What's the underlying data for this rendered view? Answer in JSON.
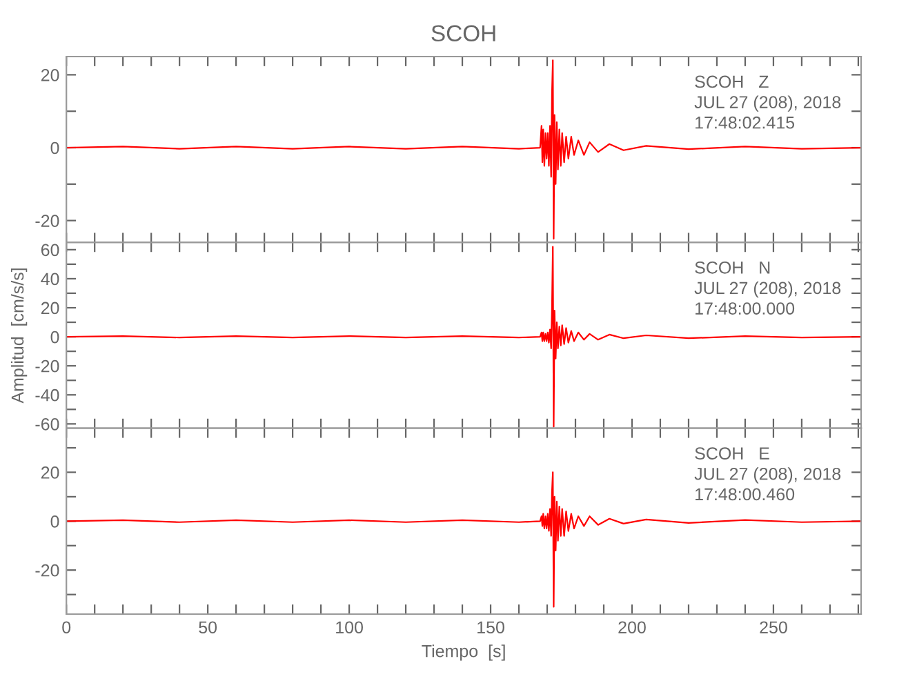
{
  "chart_data": [
    {
      "type": "line",
      "title": "SCOH",
      "annotations": [
        "SCOH   Z",
        "JUL 27 (208), 2018",
        "17:48:02.415"
      ],
      "tick_labels": "y",
      "grid": false,
      "xlim": [
        0,
        281
      ],
      "xticks": [
        0,
        {
          "value": 10,
          "label": null
        },
        {
          "value": 20,
          "label": null
        },
        {
          "value": 30,
          "label": null
        },
        {
          "value": 40,
          "label": null
        },
        50,
        {
          "value": 60,
          "label": null
        },
        {
          "value": 70,
          "label": null
        },
        {
          "value": 80,
          "label": null
        },
        {
          "value": 90,
          "label": null
        },
        100,
        {
          "value": 110,
          "label": null
        },
        {
          "value": 120,
          "label": null
        },
        {
          "value": 130,
          "label": null
        },
        {
          "value": 140,
          "label": null
        },
        150,
        {
          "value": 160,
          "label": null
        },
        {
          "value": 170,
          "label": null
        },
        {
          "value": 180,
          "label": null
        },
        {
          "value": 190,
          "label": null
        },
        200,
        {
          "value": 210,
          "label": null
        },
        {
          "value": 220,
          "label": null
        },
        {
          "value": 230,
          "label": null
        },
        {
          "value": 240,
          "label": null
        },
        250,
        {
          "value": 260,
          "label": null
        },
        {
          "value": 270,
          "label": null
        },
        {
          "value": 280,
          "label": null
        }
      ],
      "ylim": [
        -26,
        25
      ],
      "yticks": [
        -20,
        {
          "value": -10,
          "label": null
        },
        0,
        {
          "value": 10,
          "label": null
        },
        20
      ],
      "x": [
        0,
        20,
        40,
        60,
        80,
        100,
        120,
        140,
        160,
        167.5,
        168,
        168.3,
        168.6,
        169,
        169.4,
        169.8,
        170.2,
        170.6,
        171,
        171.4,
        171.7,
        172,
        172.3,
        172.6,
        173,
        173.4,
        173.8,
        174.3,
        174.8,
        175.3,
        176,
        176.7,
        177.5,
        178.5,
        179.5,
        181,
        183,
        185,
        188,
        192,
        197,
        205,
        220,
        240,
        260,
        281
      ],
      "series": [
        {
          "color": "#ff0000",
          "values": [
            0,
            0.3,
            -0.3,
            0.3,
            -0.3,
            0.3,
            -0.3,
            0.3,
            -0.3,
            0,
            6,
            -4,
            5,
            -5,
            4,
            -3,
            4,
            -5,
            6,
            -8,
            15,
            24,
            -25,
            9,
            -10,
            7,
            -6,
            5,
            -5,
            4,
            -4,
            3,
            -3,
            3,
            -2,
            2,
            -2,
            1.5,
            -1.2,
            1,
            -0.7,
            0.5,
            -0.4,
            0.3,
            -0.3,
            0
          ]
        }
      ]
    },
    {
      "type": "line",
      "ylabel": "Amplitud  [cm/s/s]",
      "annotations": [
        "SCOH   N",
        "JUL 27 (208), 2018",
        "17:48:00.000"
      ],
      "tick_labels": "y",
      "grid": false,
      "xlim": [
        0,
        281
      ],
      "xticks": [
        0,
        {
          "value": 10,
          "label": null
        },
        {
          "value": 20,
          "label": null
        },
        {
          "value": 30,
          "label": null
        },
        {
          "value": 40,
          "label": null
        },
        50,
        {
          "value": 60,
          "label": null
        },
        {
          "value": 70,
          "label": null
        },
        {
          "value": 80,
          "label": null
        },
        {
          "value": 90,
          "label": null
        },
        100,
        {
          "value": 110,
          "label": null
        },
        {
          "value": 120,
          "label": null
        },
        {
          "value": 130,
          "label": null
        },
        {
          "value": 140,
          "label": null
        },
        150,
        {
          "value": 160,
          "label": null
        },
        {
          "value": 170,
          "label": null
        },
        {
          "value": 180,
          "label": null
        },
        {
          "value": 190,
          "label": null
        },
        200,
        {
          "value": 210,
          "label": null
        },
        {
          "value": 220,
          "label": null
        },
        {
          "value": 230,
          "label": null
        },
        {
          "value": 240,
          "label": null
        },
        250,
        {
          "value": 260,
          "label": null
        },
        {
          "value": 270,
          "label": null
        },
        {
          "value": 280,
          "label": null
        }
      ],
      "ylim": [
        -63,
        65
      ],
      "yticks": [
        -60,
        {
          "value": -50,
          "label": null
        },
        -40,
        {
          "value": -30,
          "label": null
        },
        -20,
        {
          "value": -10,
          "label": null
        },
        0,
        {
          "value": 10,
          "label": null
        },
        20,
        {
          "value": 30,
          "label": null
        },
        40,
        {
          "value": 50,
          "label": null
        },
        60
      ],
      "x": [
        0,
        20,
        40,
        60,
        80,
        100,
        120,
        140,
        160,
        167.5,
        168,
        168.3,
        168.6,
        169,
        169.4,
        169.8,
        170.2,
        170.6,
        171,
        171.4,
        171.7,
        172,
        172.3,
        172.6,
        173,
        173.4,
        173.8,
        174.3,
        174.8,
        175.3,
        176,
        176.7,
        177.5,
        178.5,
        179.5,
        181,
        183,
        185,
        188,
        192,
        197,
        205,
        220,
        240,
        260,
        281
      ],
      "series": [
        {
          "color": "#ff0000",
          "values": [
            0,
            0.5,
            -0.5,
            0.5,
            -0.5,
            0.5,
            -0.5,
            0.5,
            -0.5,
            0,
            3,
            -3,
            3,
            -3,
            2,
            -3,
            3,
            -4,
            5,
            -8,
            20,
            62,
            -62,
            18,
            -15,
            10,
            -8,
            7,
            -6,
            8,
            -5,
            6,
            -4,
            4,
            -3,
            3,
            -2,
            2,
            -2,
            1.5,
            -1,
            1,
            -1,
            0.5,
            -0.5,
            0
          ]
        }
      ]
    },
    {
      "type": "line",
      "xlabel": "Tiempo  [s]",
      "annotations": [
        "SCOH   E",
        "JUL 27 (208), 2018",
        "17:48:00.460"
      ],
      "grid": false,
      "xlim": [
        0,
        281
      ],
      "xticks": [
        0,
        {
          "value": 10,
          "label": null
        },
        {
          "value": 20,
          "label": null
        },
        {
          "value": 30,
          "label": null
        },
        {
          "value": 40,
          "label": null
        },
        50,
        {
          "value": 60,
          "label": null
        },
        {
          "value": 70,
          "label": null
        },
        {
          "value": 80,
          "label": null
        },
        {
          "value": 90,
          "label": null
        },
        100,
        {
          "value": 110,
          "label": null
        },
        {
          "value": 120,
          "label": null
        },
        {
          "value": 130,
          "label": null
        },
        {
          "value": 140,
          "label": null
        },
        150,
        {
          "value": 160,
          "label": null
        },
        {
          "value": 170,
          "label": null
        },
        {
          "value": 180,
          "label": null
        },
        {
          "value": 190,
          "label": null
        },
        200,
        {
          "value": 210,
          "label": null
        },
        {
          "value": 220,
          "label": null
        },
        {
          "value": 230,
          "label": null
        },
        {
          "value": 240,
          "label": null
        },
        250,
        {
          "value": 260,
          "label": null
        },
        {
          "value": 270,
          "label": null
        },
        {
          "value": 280,
          "label": null
        }
      ],
      "ylim": [
        -38,
        38
      ],
      "yticks": [
        {
          "value": -30,
          "label": null
        },
        -20,
        {
          "value": -10,
          "label": null
        },
        0,
        {
          "value": 10,
          "label": null
        },
        20,
        {
          "value": 30,
          "label": null
        }
      ],
      "x": [
        0,
        20,
        40,
        60,
        80,
        100,
        120,
        140,
        160,
        167.5,
        168,
        168.3,
        168.6,
        169,
        169.4,
        169.8,
        170.2,
        170.6,
        171,
        171.4,
        171.7,
        172,
        172.3,
        172.6,
        173,
        173.4,
        173.8,
        174.3,
        174.8,
        175.3,
        176,
        176.7,
        177.5,
        178.5,
        179.5,
        181,
        183,
        185,
        188,
        192,
        197,
        205,
        220,
        240,
        260,
        281
      ],
      "series": [
        {
          "color": "#ff0000",
          "values": [
            0,
            0.4,
            -0.4,
            0.4,
            -0.4,
            0.4,
            -0.4,
            0.4,
            -0.4,
            0,
            2,
            -2,
            3,
            -3,
            2,
            -3,
            3,
            -4,
            5,
            -6,
            12,
            20,
            -35,
            10,
            -12,
            8,
            -8,
            6,
            -6,
            5,
            -6,
            4,
            -4,
            3,
            -3,
            2,
            -2,
            2,
            -1.5,
            1,
            -1,
            0.7,
            -0.7,
            0.5,
            -0.4,
            0
          ]
        }
      ]
    }
  ]
}
